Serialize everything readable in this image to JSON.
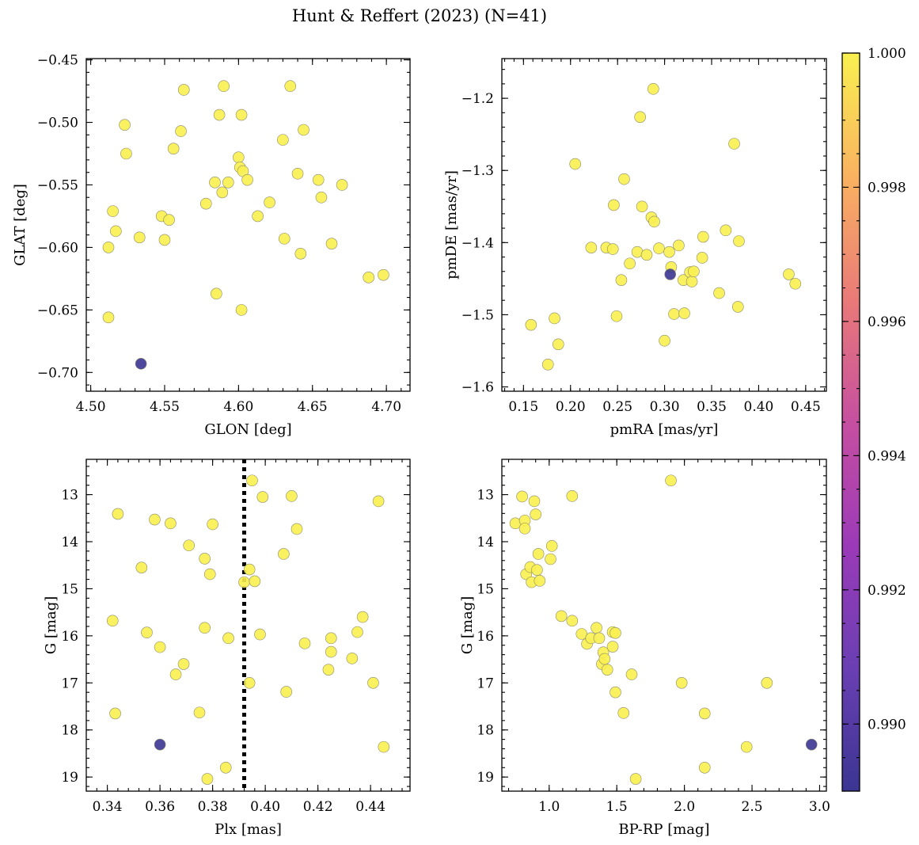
{
  "title": "Hunt & Reffert (2023) (N=41)",
  "colorbar": {
    "min": 0.989,
    "max": 1.0,
    "ticks": [
      0.99,
      0.992,
      0.994,
      0.996,
      0.998,
      1.0
    ],
    "tick_labels": [
      "0.990",
      "0.992",
      "0.994",
      "0.996",
      "0.998",
      "1.000"
    ],
    "colormap": "plasma",
    "colors": [
      "#3b3592",
      "#6a3fb3",
      "#9b3ab8",
      "#c64fa0",
      "#e97a78",
      "#f9b260",
      "#f9f050"
    ]
  },
  "chart_data": [
    {
      "type": "scatter",
      "xlabel": "GLON [deg]",
      "ylabel": "GLAT [deg]",
      "xlim": [
        4.497,
        4.716
      ],
      "ylim": [
        -0.715,
        -0.449
      ],
      "xticks": [
        4.5,
        4.55,
        4.6,
        4.65,
        4.7
      ],
      "xtick_labels": [
        "4.50",
        "4.55",
        "4.60",
        "4.65",
        "4.70"
      ],
      "yticks": [
        -0.7,
        -0.65,
        -0.6,
        -0.55,
        -0.5,
        -0.45
      ],
      "ytick_labels": [
        "−0.70",
        "−0.65",
        "−0.60",
        "−0.55",
        "−0.50",
        "−0.45"
      ],
      "yinvert": false,
      "points": [
        [
          4.512,
          -0.6,
          1.0
        ],
        [
          4.512,
          -0.656,
          1.0
        ],
        [
          4.515,
          -0.571,
          1.0
        ],
        [
          4.517,
          -0.587,
          1.0
        ],
        [
          4.523,
          -0.502,
          1.0
        ],
        [
          4.524,
          -0.525,
          1.0
        ],
        [
          4.533,
          -0.592,
          1.0
        ],
        [
          4.548,
          -0.575,
          1.0
        ],
        [
          4.55,
          -0.594,
          1.0
        ],
        [
          4.553,
          -0.578,
          1.0
        ],
        [
          4.556,
          -0.521,
          1.0
        ],
        [
          4.561,
          -0.507,
          1.0
        ],
        [
          4.563,
          -0.474,
          1.0
        ],
        [
          4.578,
          -0.565,
          1.0
        ],
        [
          4.584,
          -0.548,
          1.0
        ],
        [
          4.585,
          -0.637,
          1.0
        ],
        [
          4.587,
          -0.494,
          1.0
        ],
        [
          4.589,
          -0.556,
          1.0
        ],
        [
          4.59,
          -0.471,
          1.0
        ],
        [
          4.593,
          -0.548,
          1.0
        ],
        [
          4.6,
          -0.528,
          1.0
        ],
        [
          4.601,
          -0.536,
          1.0
        ],
        [
          4.602,
          -0.494,
          1.0
        ],
        [
          4.602,
          -0.65,
          1.0
        ],
        [
          4.603,
          -0.539,
          1.0
        ],
        [
          4.606,
          -0.546,
          1.0
        ],
        [
          4.613,
          -0.575,
          1.0
        ],
        [
          4.621,
          -0.564,
          1.0
        ],
        [
          4.63,
          -0.514,
          1.0
        ],
        [
          4.631,
          -0.593,
          1.0
        ],
        [
          4.635,
          -0.471,
          1.0
        ],
        [
          4.64,
          -0.541,
          1.0
        ],
        [
          4.642,
          -0.605,
          1.0
        ],
        [
          4.644,
          -0.506,
          1.0
        ],
        [
          4.654,
          -0.546,
          1.0
        ],
        [
          4.656,
          -0.56,
          1.0
        ],
        [
          4.663,
          -0.597,
          1.0
        ],
        [
          4.67,
          -0.55,
          1.0
        ],
        [
          4.688,
          -0.624,
          1.0
        ],
        [
          4.698,
          -0.622,
          1.0
        ],
        [
          4.534,
          -0.693,
          0.989
        ]
      ]
    },
    {
      "type": "scatter",
      "xlabel": "pmRA [mas/yr]",
      "ylabel": "pmDE [mas/yr]",
      "xlim": [
        0.127,
        0.472
      ],
      "ylim": [
        -1.606,
        -1.145
      ],
      "xticks": [
        0.15,
        0.2,
        0.25,
        0.3,
        0.35,
        0.4,
        0.45
      ],
      "xtick_labels": [
        "0.15",
        "0.20",
        "0.25",
        "0.30",
        "0.35",
        "0.40",
        "0.45"
      ],
      "yticks": [
        -1.6,
        -1.5,
        -1.4,
        -1.3,
        -1.2
      ],
      "ytick_labels": [
        "−1.6",
        "−1.5",
        "−1.4",
        "−1.3",
        "−1.2"
      ],
      "yinvert": false,
      "points": [
        [
          0.158,
          -1.514,
          1.0
        ],
        [
          0.176,
          -1.569,
          1.0
        ],
        [
          0.183,
          -1.505,
          1.0
        ],
        [
          0.187,
          -1.541,
          1.0
        ],
        [
          0.205,
          -1.291,
          1.0
        ],
        [
          0.222,
          -1.407,
          1.0
        ],
        [
          0.238,
          -1.407,
          1.0
        ],
        [
          0.245,
          -1.409,
          1.0
        ],
        [
          0.246,
          -1.348,
          1.0
        ],
        [
          0.249,
          -1.502,
          1.0
        ],
        [
          0.254,
          -1.452,
          1.0
        ],
        [
          0.257,
          -1.312,
          1.0
        ],
        [
          0.263,
          -1.429,
          1.0
        ],
        [
          0.271,
          -1.413,
          1.0
        ],
        [
          0.274,
          -1.226,
          1.0
        ],
        [
          0.276,
          -1.35,
          1.0
        ],
        [
          0.281,
          -1.417,
          1.0
        ],
        [
          0.286,
          -1.365,
          1.0
        ],
        [
          0.288,
          -1.187,
          1.0
        ],
        [
          0.289,
          -1.371,
          1.0
        ],
        [
          0.294,
          -1.408,
          1.0
        ],
        [
          0.3,
          -1.536,
          1.0
        ],
        [
          0.305,
          -1.413,
          1.0
        ],
        [
          0.307,
          -1.434,
          1.0
        ],
        [
          0.31,
          -1.499,
          1.0
        ],
        [
          0.315,
          -1.404,
          1.0
        ],
        [
          0.32,
          -1.452,
          1.0
        ],
        [
          0.321,
          -1.498,
          1.0
        ],
        [
          0.327,
          -1.441,
          1.0
        ],
        [
          0.329,
          -1.454,
          1.0
        ],
        [
          0.331,
          -1.44,
          1.0
        ],
        [
          0.34,
          -1.421,
          1.0
        ],
        [
          0.341,
          -1.392,
          1.0
        ],
        [
          0.358,
          -1.47,
          1.0
        ],
        [
          0.365,
          -1.383,
          1.0
        ],
        [
          0.374,
          -1.263,
          1.0
        ],
        [
          0.378,
          -1.489,
          1.0
        ],
        [
          0.379,
          -1.398,
          1.0
        ],
        [
          0.432,
          -1.444,
          1.0
        ],
        [
          0.439,
          -1.457,
          1.0
        ],
        [
          0.306,
          -1.444,
          0.989
        ]
      ]
    },
    {
      "type": "scatter",
      "xlabel": "Plx [mas]",
      "ylabel": "G [mag]",
      "xlim": [
        0.332,
        0.455
      ],
      "ylim": [
        12.25,
        19.3
      ],
      "xticks": [
        0.34,
        0.36,
        0.38,
        0.4,
        0.42,
        0.44
      ],
      "xtick_labels": [
        "0.34",
        "0.36",
        "0.38",
        "0.40",
        "0.42",
        "0.44"
      ],
      "yticks": [
        13,
        14,
        15,
        16,
        17,
        18,
        19
      ],
      "ytick_labels": [
        "13",
        "14",
        "15",
        "16",
        "17",
        "18",
        "19"
      ],
      "yinvert": true,
      "vline": 0.392,
      "points": [
        [
          0.342,
          15.68,
          1.0
        ],
        [
          0.343,
          17.65,
          1.0
        ],
        [
          0.344,
          13.41,
          1.0
        ],
        [
          0.353,
          14.55,
          1.0
        ],
        [
          0.355,
          15.93,
          1.0
        ],
        [
          0.358,
          13.53,
          1.0
        ],
        [
          0.36,
          16.24,
          1.0
        ],
        [
          0.364,
          13.61,
          1.0
        ],
        [
          0.366,
          16.82,
          1.0
        ],
        [
          0.369,
          16.6,
          1.0
        ],
        [
          0.371,
          14.08,
          1.0
        ],
        [
          0.375,
          17.63,
          1.0
        ],
        [
          0.377,
          14.36,
          1.0
        ],
        [
          0.377,
          15.83,
          1.0
        ],
        [
          0.378,
          19.04,
          1.0
        ],
        [
          0.379,
          14.69,
          1.0
        ],
        [
          0.38,
          13.63,
          1.0
        ],
        [
          0.385,
          18.8,
          1.0
        ],
        [
          0.386,
          16.05,
          1.0
        ],
        [
          0.392,
          14.86,
          1.0
        ],
        [
          0.394,
          14.59,
          1.0
        ],
        [
          0.395,
          12.7,
          1.0
        ],
        [
          0.394,
          17.0,
          1.0
        ],
        [
          0.396,
          14.84,
          1.0
        ],
        [
          0.398,
          15.97,
          1.0
        ],
        [
          0.399,
          13.05,
          1.0
        ],
        [
          0.407,
          14.26,
          1.0
        ],
        [
          0.408,
          17.19,
          1.0
        ],
        [
          0.41,
          13.03,
          1.0
        ],
        [
          0.412,
          13.73,
          1.0
        ],
        [
          0.415,
          16.16,
          1.0
        ],
        [
          0.424,
          16.72,
          1.0
        ],
        [
          0.425,
          16.34,
          1.0
        ],
        [
          0.425,
          16.05,
          1.0
        ],
        [
          0.433,
          16.48,
          1.0
        ],
        [
          0.435,
          15.92,
          1.0
        ],
        [
          0.437,
          15.6,
          1.0
        ],
        [
          0.441,
          17.0,
          1.0
        ],
        [
          0.443,
          13.14,
          1.0
        ],
        [
          0.445,
          18.36,
          1.0
        ],
        [
          0.36,
          18.31,
          0.989
        ]
      ]
    },
    {
      "type": "scatter",
      "xlabel": "BP-RP [mag]",
      "ylabel": "G [mag]",
      "xlim": [
        0.65,
        3.05
      ],
      "ylim": [
        12.25,
        19.3
      ],
      "xticks": [
        1.0,
        1.5,
        2.0,
        2.5,
        3.0
      ],
      "xtick_labels": [
        "1.0",
        "1.5",
        "2.0",
        "2.5",
        "3.0"
      ],
      "yticks": [
        13,
        14,
        15,
        16,
        17,
        18,
        19
      ],
      "ytick_labels": [
        "13",
        "14",
        "15",
        "16",
        "17",
        "18",
        "19"
      ],
      "yinvert": true,
      "points": [
        [
          0.75,
          13.61,
          1.0
        ],
        [
          0.8,
          13.04,
          1.0
        ],
        [
          0.82,
          13.55,
          1.0
        ],
        [
          0.82,
          13.72,
          1.0
        ],
        [
          0.83,
          14.69,
          1.0
        ],
        [
          0.86,
          14.54,
          1.0
        ],
        [
          0.87,
          14.86,
          1.0
        ],
        [
          0.89,
          13.14,
          1.0
        ],
        [
          0.9,
          13.42,
          1.0
        ],
        [
          0.91,
          14.6,
          1.0
        ],
        [
          0.92,
          14.26,
          1.0
        ],
        [
          0.93,
          14.83,
          1.0
        ],
        [
          1.01,
          14.37,
          1.0
        ],
        [
          1.02,
          14.09,
          1.0
        ],
        [
          1.09,
          15.58,
          1.0
        ],
        [
          1.17,
          13.03,
          1.0
        ],
        [
          1.17,
          15.68,
          1.0
        ],
        [
          1.24,
          15.96,
          1.0
        ],
        [
          1.28,
          16.17,
          1.0
        ],
        [
          1.31,
          16.05,
          1.0
        ],
        [
          1.35,
          15.83,
          1.0
        ],
        [
          1.37,
          16.05,
          1.0
        ],
        [
          1.39,
          16.6,
          1.0
        ],
        [
          1.4,
          16.35,
          1.0
        ],
        [
          1.41,
          16.49,
          1.0
        ],
        [
          1.43,
          16.72,
          1.0
        ],
        [
          1.47,
          15.92,
          1.0
        ],
        [
          1.47,
          16.23,
          1.0
        ],
        [
          1.49,
          15.94,
          1.0
        ],
        [
          1.49,
          17.2,
          1.0
        ],
        [
          1.55,
          17.64,
          1.0
        ],
        [
          1.61,
          16.82,
          1.0
        ],
        [
          1.64,
          19.04,
          1.0
        ],
        [
          1.9,
          12.7,
          1.0
        ],
        [
          1.98,
          17.0,
          1.0
        ],
        [
          2.15,
          17.65,
          1.0
        ],
        [
          2.15,
          18.8,
          1.0
        ],
        [
          2.46,
          18.36,
          1.0
        ],
        [
          2.61,
          17.0,
          1.0
        ],
        [
          2.94,
          18.31,
          0.989
        ]
      ]
    }
  ]
}
